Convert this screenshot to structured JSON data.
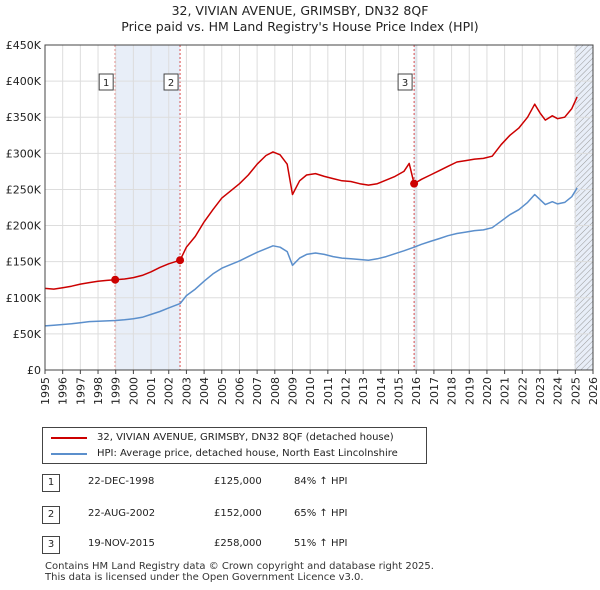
{
  "chart_data": {
    "type": "line",
    "title": "32, VIVIAN AVENUE, GRIMSBY, DN32 8QF",
    "subtitle": "Price paid vs. HM Land Registry's House Price Index (HPI)",
    "xlim": [
      1995,
      2026
    ],
    "ylim": [
      0,
      450000
    ],
    "x_ticks": [
      1995,
      1996,
      1997,
      1998,
      1999,
      2000,
      2001,
      2002,
      2003,
      2004,
      2005,
      2006,
      2007,
      2008,
      2009,
      2010,
      2011,
      2012,
      2013,
      2014,
      2015,
      2016,
      2017,
      2018,
      2019,
      2020,
      2021,
      2022,
      2023,
      2024,
      2025,
      2026
    ],
    "y_ticks": [
      {
        "value": 0,
        "label": "£0"
      },
      {
        "value": 50000,
        "label": "£50K"
      },
      {
        "value": 100000,
        "label": "£100K"
      },
      {
        "value": 150000,
        "label": "£150K"
      },
      {
        "value": 200000,
        "label": "£200K"
      },
      {
        "value": 250000,
        "label": "£250K"
      },
      {
        "value": 300000,
        "label": "£300K"
      },
      {
        "value": 350000,
        "label": "£350K"
      },
      {
        "value": 400000,
        "label": "£400K"
      },
      {
        "value": 450000,
        "label": "£450K"
      }
    ],
    "grid": true,
    "series": [
      {
        "name": "32, VIVIAN AVENUE, GRIMSBY, DN32 8QF (detached house)",
        "color": "#cc0000",
        "points": [
          [
            1995.0,
            113000
          ],
          [
            1995.5,
            112000
          ],
          [
            1996.0,
            114000
          ],
          [
            1996.5,
            116000
          ],
          [
            1997.0,
            119000
          ],
          [
            1997.5,
            121000
          ],
          [
            1998.0,
            123000
          ],
          [
            1998.5,
            124000
          ],
          [
            1998.97,
            125000
          ],
          [
            1999.5,
            126000
          ],
          [
            2000.0,
            128000
          ],
          [
            2000.5,
            131000
          ],
          [
            2001.0,
            136000
          ],
          [
            2001.5,
            142000
          ],
          [
            2002.0,
            147000
          ],
          [
            2002.64,
            152000
          ],
          [
            2003.0,
            170000
          ],
          [
            2003.5,
            185000
          ],
          [
            2004.0,
            205000
          ],
          [
            2004.5,
            222000
          ],
          [
            2005.0,
            238000
          ],
          [
            2005.5,
            248000
          ],
          [
            2006.0,
            258000
          ],
          [
            2006.5,
            270000
          ],
          [
            2007.0,
            285000
          ],
          [
            2007.5,
            297000
          ],
          [
            2007.9,
            302000
          ],
          [
            2008.3,
            298000
          ],
          [
            2008.7,
            285000
          ],
          [
            2009.0,
            243000
          ],
          [
            2009.4,
            262000
          ],
          [
            2009.8,
            270000
          ],
          [
            2010.3,
            272000
          ],
          [
            2010.8,
            268000
          ],
          [
            2011.3,
            265000
          ],
          [
            2011.8,
            262000
          ],
          [
            2012.3,
            261000
          ],
          [
            2012.8,
            258000
          ],
          [
            2013.3,
            256000
          ],
          [
            2013.8,
            258000
          ],
          [
            2014.3,
            263000
          ],
          [
            2014.8,
            268000
          ],
          [
            2015.3,
            275000
          ],
          [
            2015.6,
            286000
          ],
          [
            2015.88,
            258000
          ],
          [
            2016.3,
            264000
          ],
          [
            2016.8,
            270000
          ],
          [
            2017.3,
            276000
          ],
          [
            2017.8,
            282000
          ],
          [
            2018.3,
            288000
          ],
          [
            2018.8,
            290000
          ],
          [
            2019.3,
            292000
          ],
          [
            2019.8,
            293000
          ],
          [
            2020.3,
            296000
          ],
          [
            2020.8,
            312000
          ],
          [
            2021.3,
            325000
          ],
          [
            2021.8,
            335000
          ],
          [
            2022.3,
            350000
          ],
          [
            2022.7,
            368000
          ],
          [
            2023.0,
            356000
          ],
          [
            2023.3,
            346000
          ],
          [
            2023.7,
            352000
          ],
          [
            2024.0,
            348000
          ],
          [
            2024.4,
            350000
          ],
          [
            2024.8,
            362000
          ],
          [
            2025.1,
            378000
          ]
        ]
      },
      {
        "name": "HPI: Average price, detached house, North East Lincolnshire",
        "color": "#5b8fcc",
        "points": [
          [
            1995.0,
            61000
          ],
          [
            1995.5,
            62000
          ],
          [
            1996.0,
            63000
          ],
          [
            1996.5,
            64000
          ],
          [
            1997.0,
            65500
          ],
          [
            1997.5,
            67000
          ],
          [
            1998.0,
            67500
          ],
          [
            1998.5,
            68000
          ],
          [
            1999.0,
            68500
          ],
          [
            1999.5,
            69500
          ],
          [
            2000.0,
            71000
          ],
          [
            2000.5,
            73000
          ],
          [
            2001.0,
            77000
          ],
          [
            2001.5,
            81000
          ],
          [
            2002.0,
            86000
          ],
          [
            2002.64,
            92000
          ],
          [
            2003.0,
            103000
          ],
          [
            2003.5,
            112000
          ],
          [
            2004.0,
            123000
          ],
          [
            2004.5,
            133000
          ],
          [
            2005.0,
            141000
          ],
          [
            2005.5,
            146000
          ],
          [
            2006.0,
            151000
          ],
          [
            2006.5,
            157000
          ],
          [
            2007.0,
            163000
          ],
          [
            2007.5,
            168000
          ],
          [
            2007.9,
            172000
          ],
          [
            2008.3,
            170000
          ],
          [
            2008.7,
            164000
          ],
          [
            2009.0,
            145000
          ],
          [
            2009.4,
            155000
          ],
          [
            2009.8,
            160000
          ],
          [
            2010.3,
            162000
          ],
          [
            2010.8,
            160000
          ],
          [
            2011.3,
            157000
          ],
          [
            2011.8,
            155000
          ],
          [
            2012.3,
            154000
          ],
          [
            2012.8,
            153000
          ],
          [
            2013.3,
            152000
          ],
          [
            2013.8,
            154000
          ],
          [
            2014.3,
            157000
          ],
          [
            2014.8,
            161000
          ],
          [
            2015.3,
            165000
          ],
          [
            2015.88,
            170000
          ],
          [
            2016.3,
            174000
          ],
          [
            2016.8,
            178000
          ],
          [
            2017.3,
            182000
          ],
          [
            2017.8,
            186000
          ],
          [
            2018.3,
            189000
          ],
          [
            2018.8,
            191000
          ],
          [
            2019.3,
            193000
          ],
          [
            2019.8,
            194000
          ],
          [
            2020.3,
            197000
          ],
          [
            2020.8,
            206000
          ],
          [
            2021.3,
            215000
          ],
          [
            2021.8,
            222000
          ],
          [
            2022.3,
            232000
          ],
          [
            2022.7,
            243000
          ],
          [
            2023.0,
            236000
          ],
          [
            2023.3,
            229000
          ],
          [
            2023.7,
            233000
          ],
          [
            2024.0,
            230000
          ],
          [
            2024.4,
            232000
          ],
          [
            2024.8,
            240000
          ],
          [
            2025.1,
            252000
          ]
        ]
      }
    ],
    "sales": [
      {
        "id": "1",
        "x": 1998.97,
        "price": 125000,
        "date": "22-DEC-1998",
        "price_label": "£125,000",
        "hpi": "84% ↑ HPI"
      },
      {
        "id": "2",
        "x": 2002.64,
        "price": 152000,
        "date": "22-AUG-2002",
        "price_label": "£152,000",
        "hpi": "65% ↑ HPI"
      },
      {
        "id": "3",
        "x": 2015.88,
        "price": 258000,
        "date": "19-NOV-2015",
        "price_label": "£258,000",
        "hpi": "51% ↑ HPI"
      }
    ],
    "shaded_ranges": [
      [
        1998.97,
        2002.64
      ],
      [
        2015.88,
        2016.08
      ],
      [
        2024.95,
        2026
      ]
    ],
    "hatch_from": 2024.95
  },
  "footer": "Contains HM Land Registry data © Crown copyright and database right 2025.\nThis data is licensed under the Open Government Licence v3.0."
}
